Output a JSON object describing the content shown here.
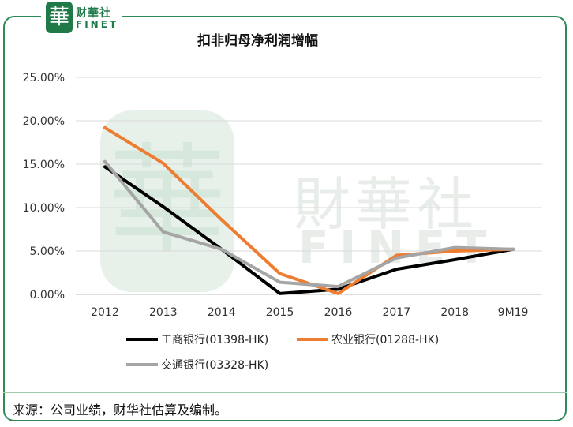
{
  "header": {
    "logo_glyph": "華",
    "logo_cn": "财華社",
    "logo_en": "FINET"
  },
  "watermark": {
    "glyph": "華",
    "cn": "財華社",
    "en": "FINET"
  },
  "source_note": "来源：公司业绩，财华社估算及编制。",
  "colors": {
    "frame": "#2e8b57",
    "grid": "#d9d9d9"
  },
  "chart_data": {
    "type": "line",
    "title": "扣非归母净利润增幅",
    "categories": [
      "2012",
      "2013",
      "2014",
      "2015",
      "2016",
      "2017",
      "2018",
      "9M19"
    ],
    "ylim": [
      0,
      25
    ],
    "yticks": [
      0,
      5,
      10,
      15,
      20,
      25
    ],
    "ytick_labels": [
      "0.00%",
      "5.00%",
      "10.00%",
      "15.00%",
      "20.00%",
      "25.00%"
    ],
    "grid": true,
    "legend_position": "bottom",
    "series": [
      {
        "name": "工商银行(01398-HK)",
        "color": "#000000",
        "values": [
          14.7,
          10.1,
          5.2,
          0.1,
          0.6,
          2.9,
          4.0,
          5.2
        ]
      },
      {
        "name": "农业银行(01288-HK)",
        "color": "#ed7d31",
        "values": [
          19.2,
          15.1,
          8.6,
          2.4,
          0.1,
          4.5,
          5.0,
          5.2
        ]
      },
      {
        "name": "交通银行(03328-HK)",
        "color": "#a5a5a5",
        "values": [
          15.3,
          7.2,
          5.2,
          1.4,
          0.9,
          4.2,
          5.4,
          5.2
        ]
      }
    ]
  }
}
